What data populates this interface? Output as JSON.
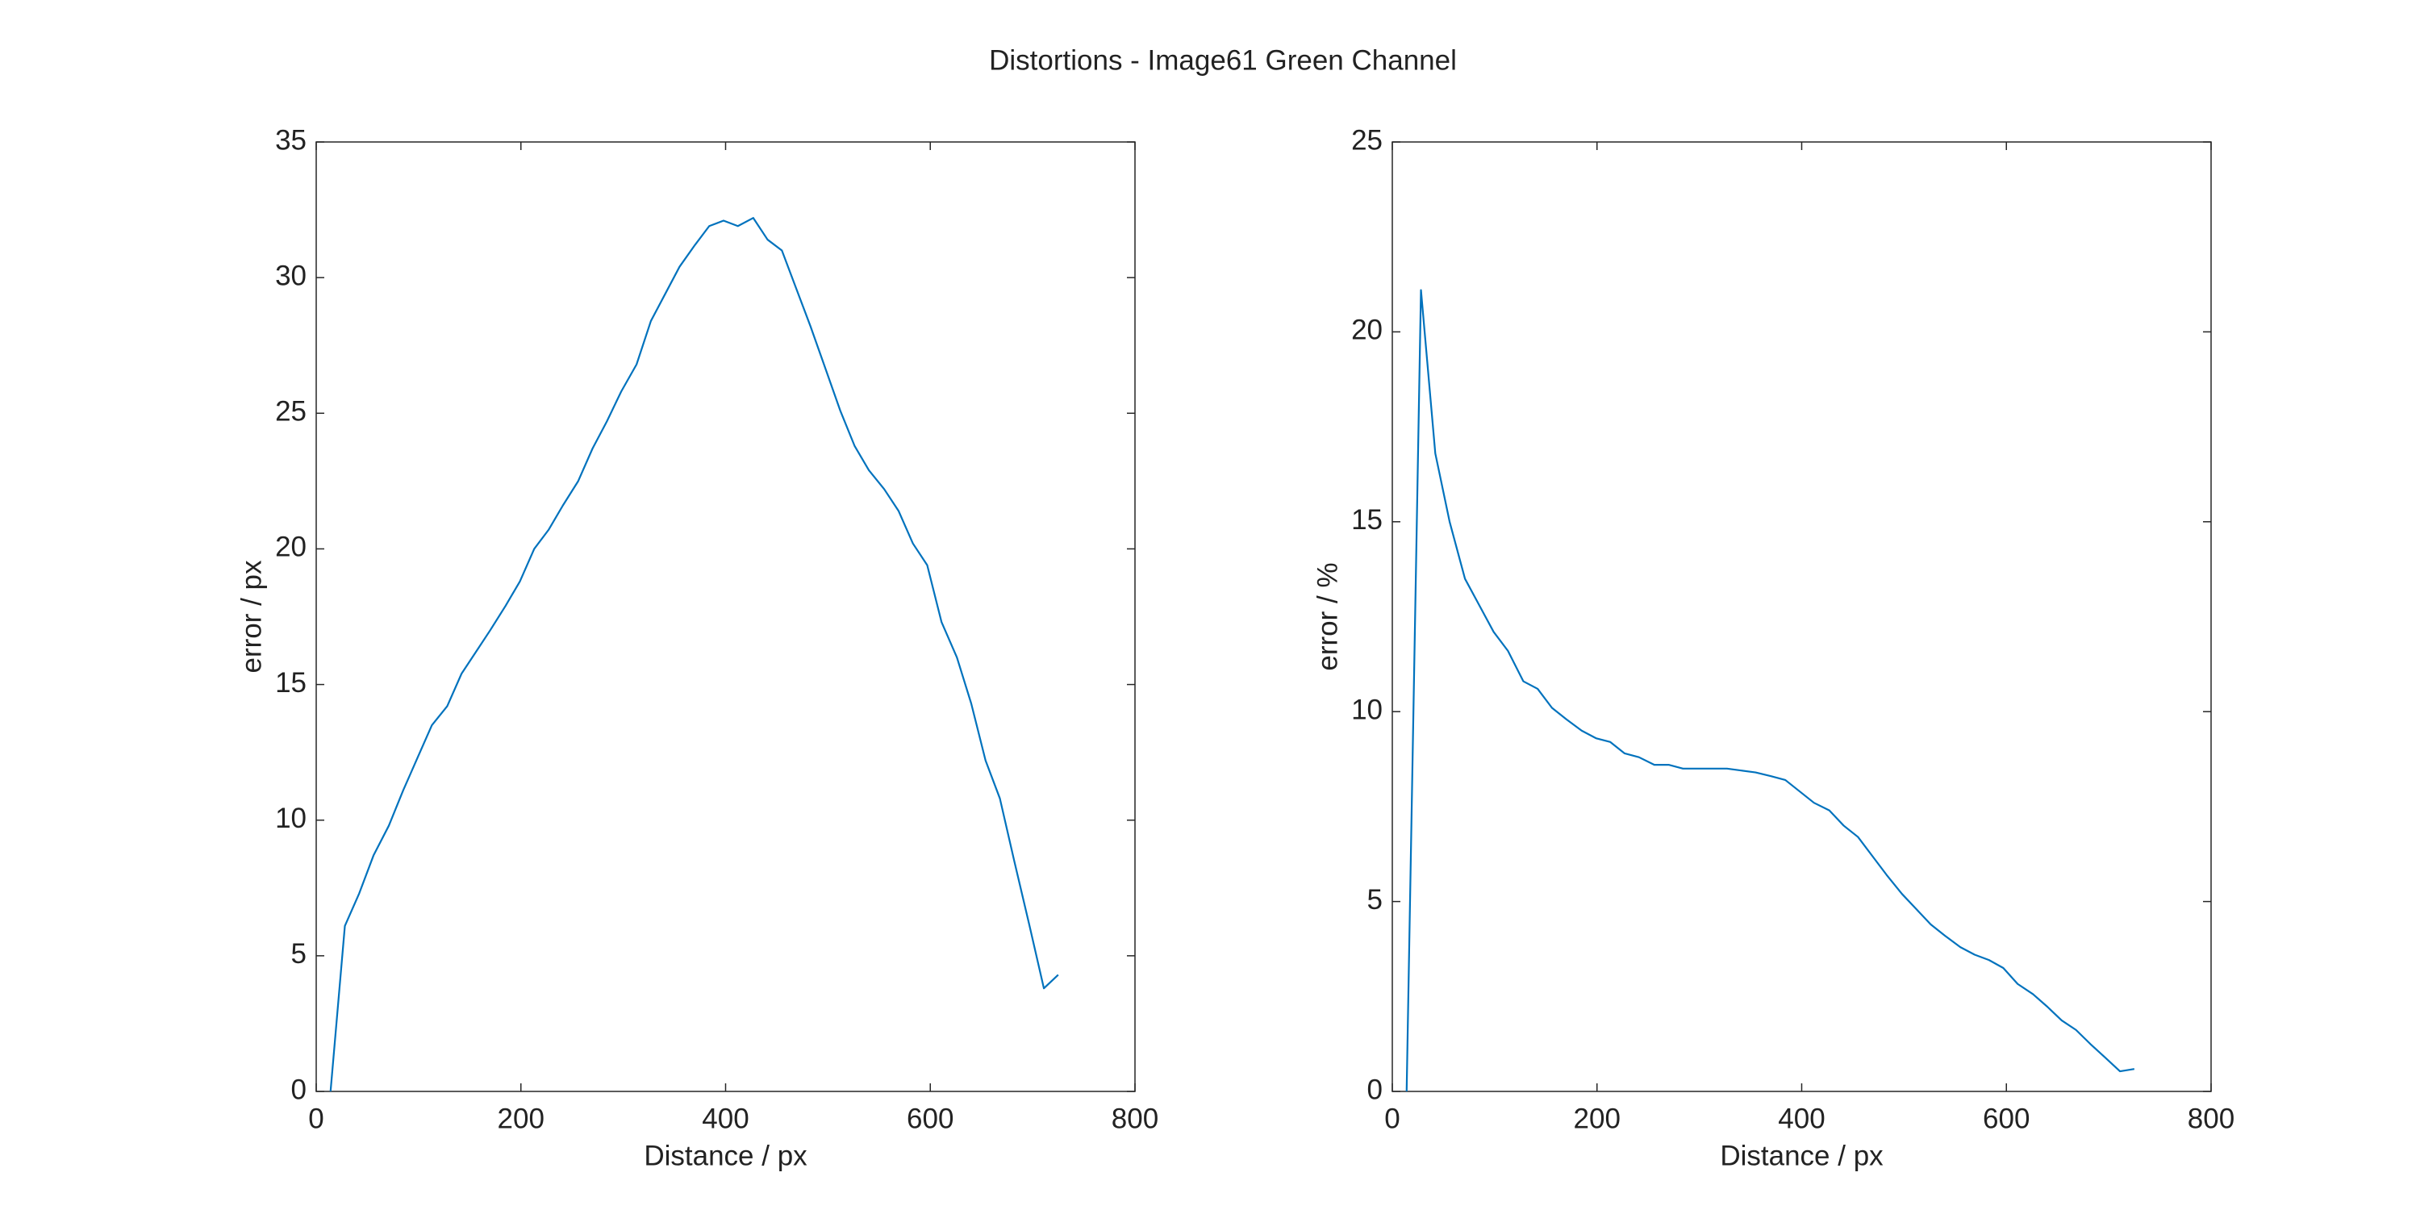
{
  "title": "Distortions - Image61 Green Channel",
  "chart_data": [
    {
      "type": "line",
      "xlabel": "Distance / px",
      "ylabel": "error / px",
      "xlim": [
        0,
        800
      ],
      "xticks": [
        0,
        200,
        400,
        600,
        800
      ],
      "ylim": [
        0,
        35
      ],
      "yticks": [
        0,
        5,
        10,
        15,
        20,
        25,
        30,
        35
      ],
      "x": [
        14,
        28,
        42,
        56,
        71,
        85,
        99,
        113,
        128,
        142,
        156,
        170,
        185,
        199,
        213,
        227,
        241,
        256,
        270,
        284,
        298,
        313,
        327,
        341,
        355,
        370,
        384,
        398,
        412,
        427,
        441,
        455,
        469,
        483,
        498,
        512,
        526,
        540,
        555,
        569,
        583,
        597,
        611,
        626,
        640,
        654,
        668,
        682,
        697,
        711,
        725
      ],
      "series": [
        {
          "color": "#0072bd",
          "values": [
            0,
            6.1,
            7.3,
            8.7,
            9.8,
            11.1,
            12.3,
            13.5,
            14.2,
            15.4,
            16.2,
            17.0,
            17.9,
            18.8,
            20.0,
            20.7,
            21.6,
            22.5,
            23.7,
            24.7,
            25.8,
            26.8,
            28.4,
            29.4,
            30.4,
            31.2,
            31.9,
            32.1,
            31.9,
            32.2,
            31.4,
            31.0,
            29.6,
            28.2,
            26.6,
            25.1,
            23.8,
            22.9,
            22.2,
            21.4,
            20.2,
            19.4,
            17.3,
            16.0,
            14.3,
            12.2,
            10.8,
            8.5,
            6.1,
            3.8,
            4.3
          ]
        }
      ]
    },
    {
      "type": "line",
      "xlabel": "Distance / px",
      "ylabel": "error / %",
      "xlim": [
        0,
        800
      ],
      "xticks": [
        0,
        200,
        400,
        600,
        800
      ],
      "ylim": [
        0,
        25
      ],
      "yticks": [
        0,
        5,
        10,
        15,
        20,
        25
      ],
      "x": [
        14,
        28,
        42,
        56,
        71,
        85,
        99,
        113,
        128,
        142,
        156,
        170,
        185,
        199,
        213,
        227,
        241,
        256,
        270,
        284,
        298,
        313,
        327,
        341,
        355,
        370,
        384,
        398,
        412,
        427,
        441,
        455,
        469,
        483,
        498,
        512,
        526,
        540,
        555,
        569,
        583,
        597,
        611,
        626,
        640,
        654,
        668,
        682,
        697,
        711,
        725
      ],
      "series": [
        {
          "color": "#0072bd",
          "values": [
            0,
            21.1,
            16.8,
            15.0,
            13.5,
            12.8,
            12.1,
            11.6,
            10.8,
            10.6,
            10.1,
            9.8,
            9.5,
            9.3,
            9.2,
            8.9,
            8.8,
            8.6,
            8.6,
            8.5,
            8.5,
            8.5,
            8.5,
            8.45,
            8.4,
            8.3,
            8.2,
            7.9,
            7.6,
            7.4,
            7.0,
            6.7,
            6.2,
            5.7,
            5.2,
            4.8,
            4.4,
            4.1,
            3.8,
            3.6,
            3.46,
            3.25,
            2.83,
            2.56,
            2.23,
            1.87,
            1.62,
            1.25,
            0.88,
            0.53,
            0.59
          ]
        }
      ]
    }
  ]
}
